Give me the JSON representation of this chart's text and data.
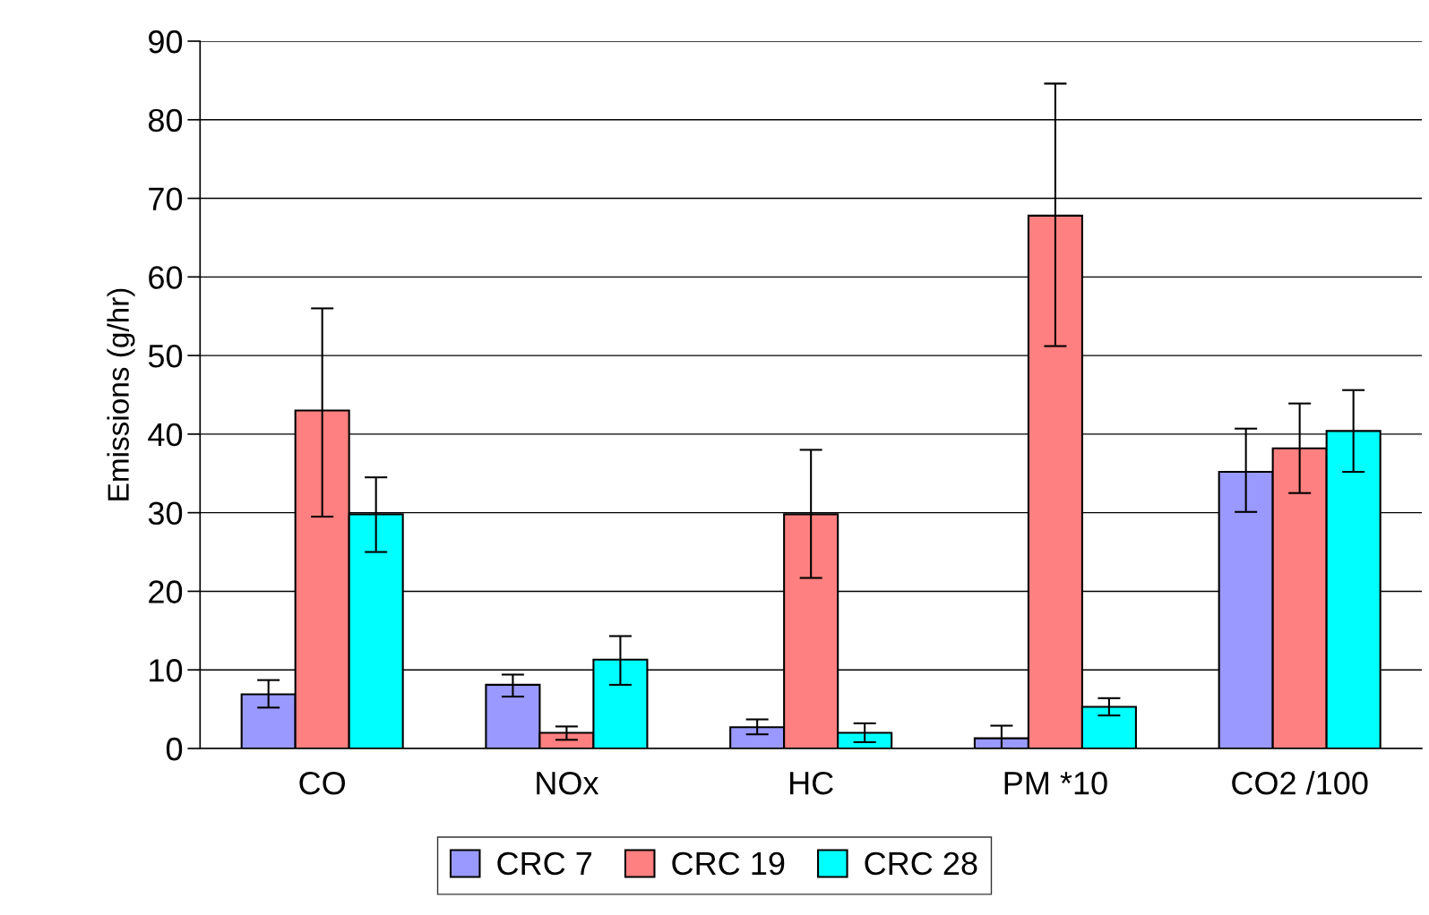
{
  "chart_data": {
    "type": "bar",
    "ylabel": "Emissions (g/hr)",
    "categories": [
      "CO",
      "NOx",
      "HC",
      "PM *10",
      "CO2 /100"
    ],
    "series": [
      {
        "name": "CRC 7",
        "color": "#9999ff",
        "values": [
          6.9,
          8.1,
          2.7,
          1.3,
          35.2
        ],
        "errors": [
          [
            5.2,
            8.7
          ],
          [
            6.6,
            9.4
          ],
          [
            1.8,
            3.7
          ],
          [
            0,
            2.9
          ],
          [
            30.1,
            40.7
          ]
        ]
      },
      {
        "name": "CRC 19",
        "color": "#ff8080",
        "values": [
          43,
          2.0,
          29.8,
          67.8,
          38.2
        ],
        "errors": [
          [
            29.5,
            56
          ],
          [
            1.1,
            2.8
          ],
          [
            21.7,
            38
          ],
          [
            51.2,
            84.6
          ],
          [
            32.5,
            43.9
          ]
        ]
      },
      {
        "name": "CRC 28",
        "color": "#00ffff",
        "values": [
          29.8,
          11.3,
          2.0,
          5.3,
          40.4
        ],
        "errors": [
          [
            25,
            34.5
          ],
          [
            8.1,
            14.3
          ],
          [
            0.8,
            3.2
          ],
          [
            4.2,
            6.4
          ],
          [
            35.2,
            45.6
          ]
        ]
      }
    ],
    "ylim": [
      0,
      90
    ],
    "yticks": [
      0,
      10,
      20,
      30,
      40,
      50,
      60,
      70,
      80,
      90
    ],
    "grid": "y",
    "legend": "bottom"
  }
}
